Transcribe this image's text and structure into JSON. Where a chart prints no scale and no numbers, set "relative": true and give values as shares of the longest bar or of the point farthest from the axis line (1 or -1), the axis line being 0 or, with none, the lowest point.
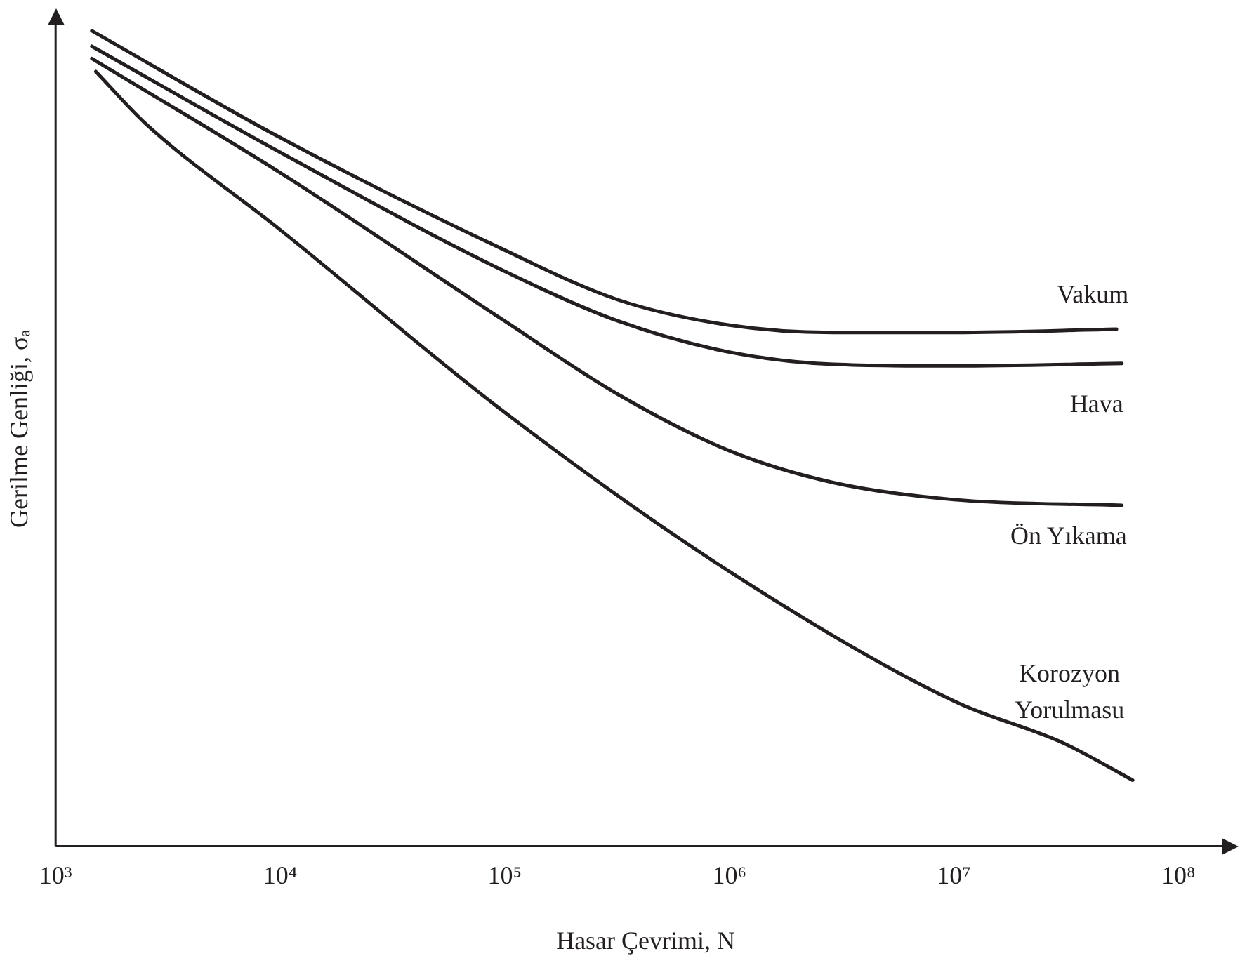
{
  "chart_data": {
    "type": "line",
    "relative": true,
    "log": "x",
    "xlabel": "Hasar Çevrimi, N",
    "ylabel": "Gerilme Genliği, σₐ",
    "xlim": [
      1000,
      180000000
    ],
    "xticks": [
      {
        "value": 1000,
        "label": "10³"
      },
      {
        "value": 10000,
        "label": "10⁴"
      },
      {
        "value": 100000,
        "label": "10⁵"
      },
      {
        "value": 1000000,
        "label": "10⁶"
      },
      {
        "value": 10000000,
        "label": "10⁷"
      },
      {
        "value": 100000000,
        "label": "10⁸"
      }
    ],
    "grid": false,
    "legend": false,
    "tick_labels": "x",
    "marker": "none",
    "line_style": "solid",
    "series": [
      {
        "name": "Vakum",
        "color": "#231f20",
        "x": [
          1450,
          10000,
          100000,
          320000,
          1000000,
          2900000,
          10000000,
          53000000
        ],
        "values": [
          1.0,
          0.869,
          0.731,
          0.67,
          0.639,
          0.63,
          0.63,
          0.634
        ]
      },
      {
        "name": "Hava",
        "color": "#231f20",
        "x": [
          1450,
          10000,
          100000,
          320000,
          1000000,
          2900000,
          10000000,
          56000000
        ],
        "values": [
          0.981,
          0.851,
          0.705,
          0.644,
          0.606,
          0.591,
          0.589,
          0.592
        ]
      },
      {
        "name": "Ön Yıkama",
        "color": "#231f20",
        "x": [
          1450,
          10000,
          100000,
          320000,
          1000000,
          2900000,
          10000000,
          56000000
        ],
        "values": [
          0.966,
          0.826,
          0.644,
          0.554,
          0.485,
          0.446,
          0.425,
          0.418
        ]
      },
      {
        "name": "Korozyon Yorulmasu",
        "color": "#231f20",
        "x": [
          1510,
          2520,
          10000,
          100000,
          1000000,
          10000000,
          31000000,
          62500000
        ],
        "values": [
          0.95,
          0.886,
          0.756,
          0.532,
          0.337,
          0.178,
          0.126,
          0.081
        ]
      }
    ]
  }
}
